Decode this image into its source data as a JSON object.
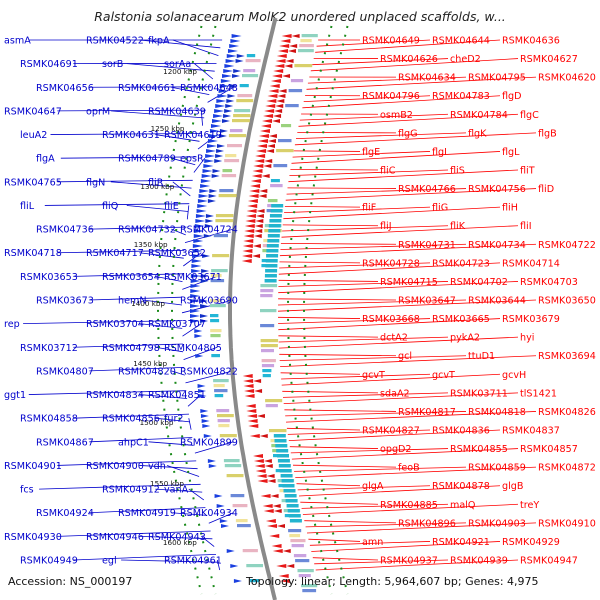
{
  "title": "Ralstonia solanacearum MolK2 unordered unplaced scaffolds, w...",
  "footer": {
    "accession": "Accession: NS_000197",
    "topology": "Topology: linear; Length: 5,964,607 bp; Genes: 4,975"
  },
  "colors": {
    "left": "#0000cc",
    "right": "#ff0000",
    "backbone": "#888888",
    "ticks": "#1a8a1a"
  },
  "kbp_ticks": [
    "1200 kbp",
    "1250 kbp",
    "1300 kbp",
    "1350 kbp",
    "1400 kbp",
    "1450 kbp",
    "1500 kbp",
    "1550 kbp",
    "1600 kbp"
  ],
  "left_labels": [
    "asmA",
    "RSMK04522",
    "fkpA",
    "RSMK04691",
    "sorB",
    "sorAa",
    "RSMK04656",
    "RSMK04661",
    "RSMK04648",
    "RSMK04647",
    "oprM",
    "RSMK04639",
    "leuA2",
    "RSMK04631",
    "RSMK04619",
    "flgA",
    "RSMK04789",
    "epsR",
    "RSMK04765",
    "flgN",
    "fliR",
    "fliL",
    "fliQ",
    "fliE",
    "RSMK04736",
    "RSMK04732",
    "RSMK04724",
    "RSMK04718",
    "RSMK04717",
    "RSMK03652",
    "RSMK03653",
    "RSMK03654",
    "RSMK03671",
    "RSMK03673",
    "hemN",
    "RSMK03690",
    "rep",
    "RSMK03704",
    "RSMK03707",
    "RSMK03712",
    "RSMK04798",
    "RSMK04805",
    "RSMK04807",
    "RSMK04820",
    "RSMK04822",
    "ggt1",
    "RSMK04834",
    "RSMK04851",
    "RSMK04858",
    "RSMK04856",
    "fur2",
    "RSMK04867",
    "ahpC1",
    "RSMK04899",
    "RSMK04901",
    "RSMK04900",
    "vdh",
    "fcs",
    "RSMK04912",
    "vanA",
    "RSMK04924",
    "RSMK04919",
    "RSMK04934",
    "RSMK04930",
    "RSMK04946",
    "RSMK04943",
    "RSMK04949",
    "egl",
    "RSMK04961"
  ],
  "right_labels": [
    "RSMK04649",
    "RSMK04644",
    "RSMK04636",
    "RSMK04626",
    "cheD2",
    "RSMK04627",
    "RSMK04634",
    "RSMK04795",
    "RSMK04620",
    "RSMK04796",
    "RSMK04783",
    "flgD",
    "osmB2",
    "RSMK04784",
    "flgC",
    "flgG",
    "flgK",
    "flgB",
    "flgE",
    "flgI",
    "flgL",
    "fliC",
    "fliS",
    "fliT",
    "RSMK04766",
    "RSMK04756",
    "fliD",
    "fliF",
    "fliG",
    "fliH",
    "fliJ",
    "fliK",
    "fliI",
    "RSMK04731",
    "RSMK04734",
    "RSMK04722",
    "RSMK04728",
    "RSMK04723",
    "RSMK04714",
    "RSMK04715",
    "RSMK04702",
    "RSMK04703",
    "RSMK03647",
    "RSMK03644",
    "RSMK03650",
    "RSMK03668",
    "RSMK03665",
    "RSMK03679",
    "dctA2",
    "pykA2",
    "hyi",
    "gcl",
    "ttuD1",
    "RSMK03694",
    "gcvT",
    "gcvT",
    "gcvH",
    "sdaA2",
    "RSMK03711",
    "tlS1421",
    "RSMK04817",
    "RSMK04818",
    "RSMK04826",
    "RSMK04827",
    "RSMK04836",
    "RSMK04837",
    "opgD2",
    "RSMK04855",
    "RSMK04857",
    "feoB",
    "RSMK04859",
    "RSMK04872",
    "glgA",
    "RSMK04878",
    "glgB",
    "RSMK04885",
    "malQ",
    "treY",
    "RSMK04896",
    "RSMK04903",
    "RSMK04910",
    "amn",
    "RSMK04921",
    "RSMK04929",
    "RSMK04937",
    "RSMK04939",
    "RSMK04947"
  ]
}
